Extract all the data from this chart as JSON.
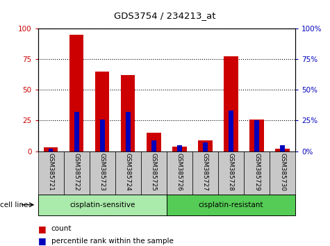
{
  "title": "GDS3754 / 234213_at",
  "samples": [
    "GSM385721",
    "GSM385722",
    "GSM385723",
    "GSM385724",
    "GSM385725",
    "GSM385726",
    "GSM385727",
    "GSM385728",
    "GSM385729",
    "GSM385730"
  ],
  "count_values": [
    3,
    95,
    65,
    62,
    15,
    4,
    9,
    77,
    26,
    2
  ],
  "percentile_values": [
    2,
    32,
    26,
    32,
    9,
    5,
    7,
    33,
    25,
    5
  ],
  "groups": [
    {
      "label": "cisplatin-sensitive",
      "start": 0,
      "end": 5,
      "color": "#aaeaaa"
    },
    {
      "label": "cisplatin-resistant",
      "start": 5,
      "end": 10,
      "color": "#55cc55"
    }
  ],
  "group_label": "cell line",
  "bar_color_red": "#cc0000",
  "bar_color_blue": "#0000bb",
  "yticks": [
    0,
    25,
    50,
    75,
    100
  ],
  "ylim": [
    0,
    100
  ],
  "legend_count": "count",
  "legend_pct": "percentile rank within the sample",
  "tick_bg_color": "#c8c8c8",
  "plot_bg_color": "#ffffff",
  "bar_width": 0.55,
  "blue_bar_width": 0.18
}
